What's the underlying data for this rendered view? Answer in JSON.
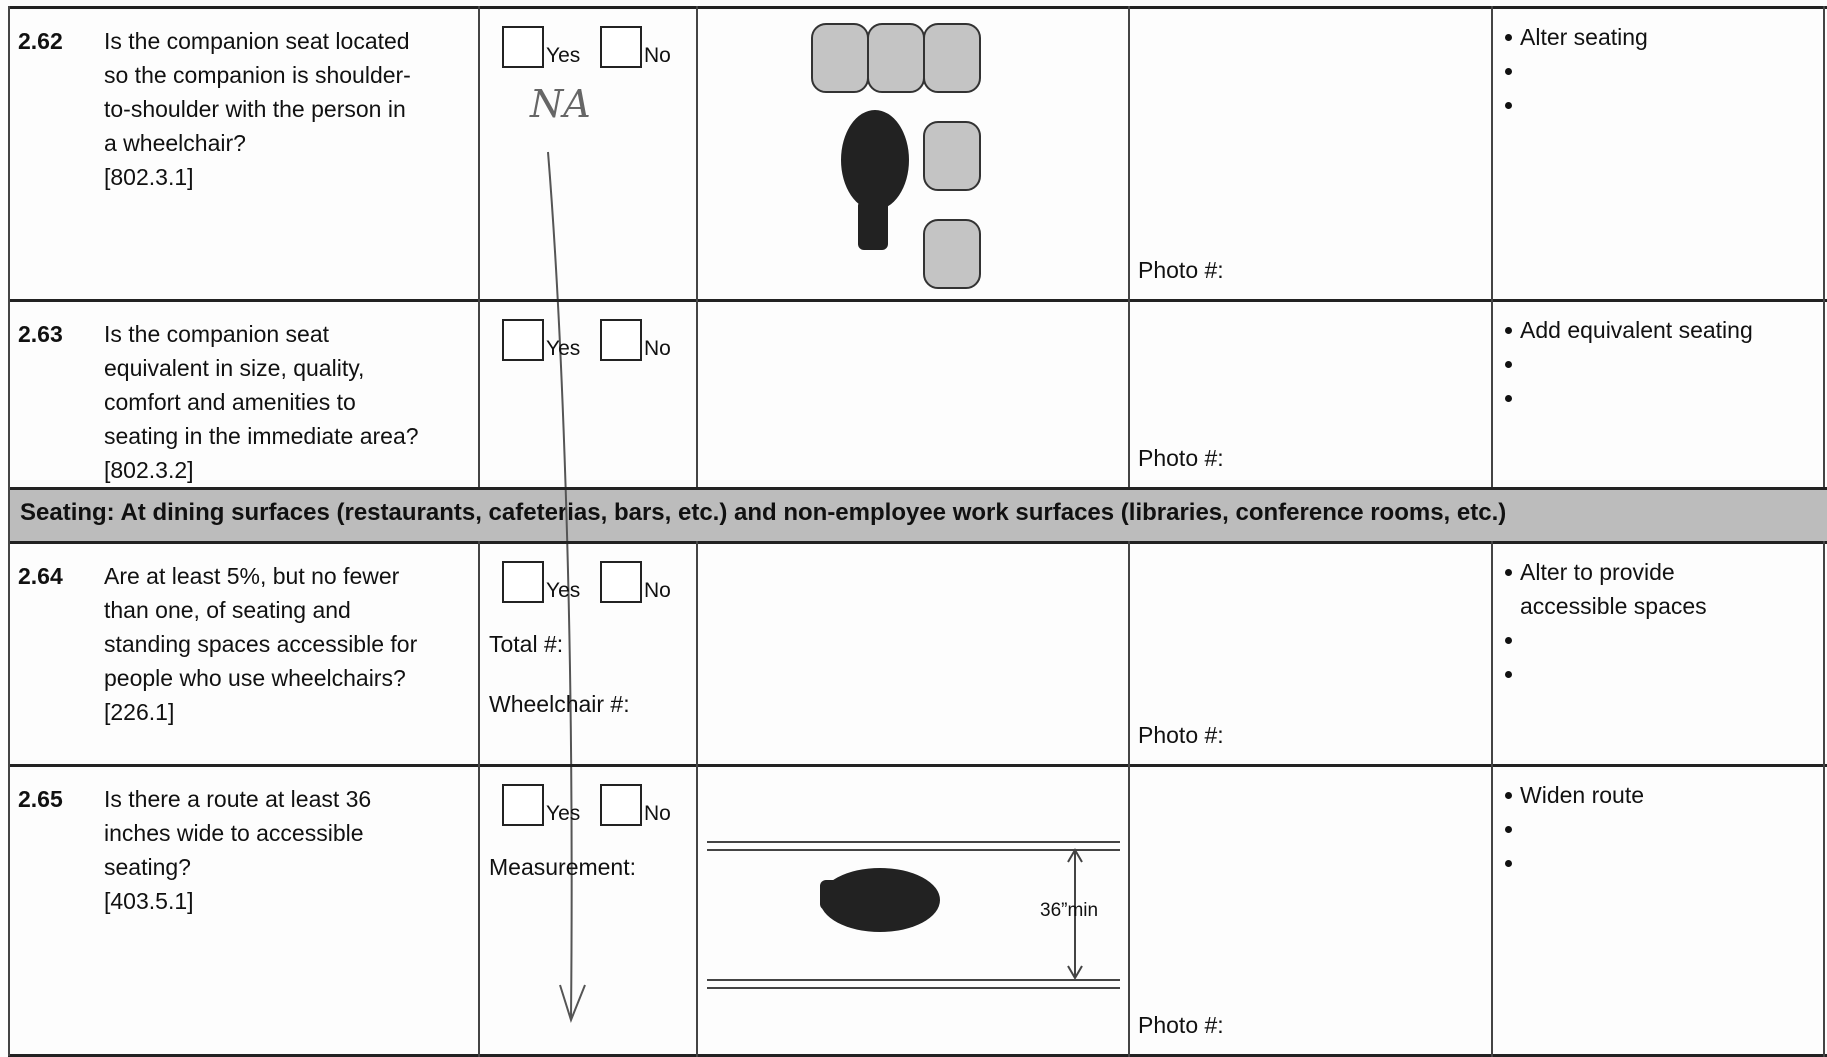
{
  "section_header": "Seating:  At dining surfaces (restaurants, cafeterias, bars, etc.) and non-employee work surfaces (libraries, conference rooms, etc.)",
  "handwritten_note": "NA",
  "rows": [
    {
      "number": "2.62",
      "question": [
        "Is the companion seat located",
        "so the companion is shoulder-",
        "to-shoulder with the person in",
        "a wheelchair?"
      ],
      "reference": "[802.3.1]",
      "options": [
        "Yes",
        "No"
      ],
      "photo": "Photo #:",
      "solution": [
        "Alter seating"
      ]
    },
    {
      "number": "2.63",
      "question": [
        "Is the companion seat",
        "equivalent in size, quality,",
        "comfort and amenities to",
        "seating in the immediate area?"
      ],
      "reference": "[802.3.2]",
      "options": [
        "Yes",
        "No"
      ],
      "photo": "Photo #:",
      "solution": [
        "Add equivalent seating"
      ]
    },
    {
      "number": "2.64",
      "question": [
        "Are at least 5%, but no fewer",
        "than one, of seating and",
        "standing spaces accessible for",
        "people who use wheelchairs?"
      ],
      "reference": "[226.1]",
      "options": [
        "Yes",
        "No"
      ],
      "fields": [
        "Total #:",
        "Wheelchair #:"
      ],
      "photo": "Photo #:",
      "solution": [
        "Alter to provide",
        "accessible spaces"
      ]
    },
    {
      "number": "2.65",
      "question": [
        "Is there a route at least 36",
        "inches wide to accessible",
        "seating?"
      ],
      "reference": "[403.5.1]",
      "options": [
        "Yes",
        "No"
      ],
      "fields": [
        "Measurement:"
      ],
      "photo": "Photo #:",
      "solution": [
        "Widen route"
      ]
    }
  ],
  "figures": {
    "route_width": "36”min"
  }
}
